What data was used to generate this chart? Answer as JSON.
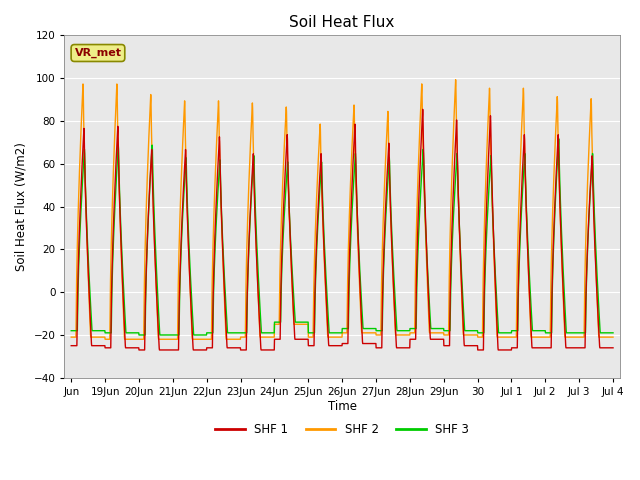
{
  "title": "Soil Heat Flux",
  "ylabel": "Soil Heat Flux (W/m2)",
  "xlabel": "Time",
  "ylim": [
    -40,
    120
  ],
  "yticks": [
    -40,
    -20,
    0,
    20,
    40,
    60,
    80,
    100,
    120
  ],
  "bg_color": "#e8e8e8",
  "legend_labels": [
    "SHF 1",
    "SHF 2",
    "SHF 3"
  ],
  "legend_colors": [
    "#cc0000",
    "#ff9900",
    "#00cc00"
  ],
  "vr_met_box_color": "#eeee88",
  "vr_met_text_color": "#8B0000",
  "num_cycles": 16,
  "shf1_peaks": [
    78,
    79,
    68,
    68,
    74,
    66,
    75,
    66,
    80,
    71,
    87,
    82,
    84,
    75,
    75,
    65
  ],
  "shf2_peaks": [
    99,
    99,
    94,
    91,
    91,
    90,
    88,
    80,
    89,
    86,
    99,
    101,
    97,
    97,
    93,
    92
  ],
  "shf3_peaks": [
    68,
    70,
    70,
    64,
    63,
    65,
    62,
    62,
    66,
    64,
    68,
    66,
    65,
    66,
    73,
    66
  ],
  "shf1_troughs": [
    -25,
    -26,
    -27,
    -27,
    -26,
    -27,
    -22,
    -25,
    -24,
    -26,
    -22,
    -25,
    -27,
    -26,
    -26,
    -26
  ],
  "shf2_troughs": [
    -21,
    -22,
    -22,
    -22,
    -22,
    -21,
    -15,
    -21,
    -19,
    -20,
    -19,
    -20,
    -21,
    -21,
    -21,
    -21
  ],
  "shf3_troughs": [
    -18,
    -19,
    -20,
    -20,
    -19,
    -19,
    -14,
    -19,
    -17,
    -18,
    -17,
    -18,
    -19,
    -18,
    -19,
    -19
  ],
  "tick_labels": [
    "Jun",
    "19Jun",
    "20Jun",
    "21Jun",
    "22Jun",
    "23Jun",
    "24Jun",
    "25Jun",
    "26Jun",
    "27Jun",
    "28Jun",
    "29Jun",
    "30",
    "Jul 1",
    "Jul 2",
    "Jul 3",
    "Jul 4"
  ]
}
